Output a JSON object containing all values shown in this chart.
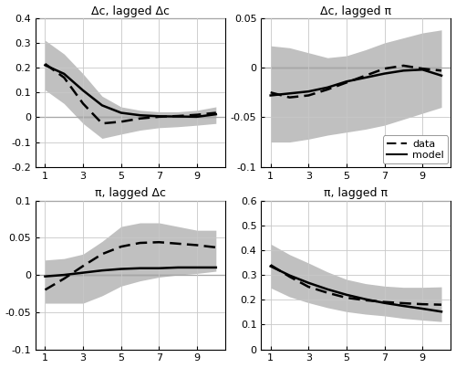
{
  "x": [
    1,
    2,
    3,
    4,
    5,
    6,
    7,
    8,
    9,
    10
  ],
  "panels": [
    {
      "title": "Δc, lagged Δc",
      "ylim": [
        -0.2,
        0.4
      ],
      "yticks": [
        -0.2,
        -0.1,
        0.0,
        0.1,
        0.2,
        0.3,
        0.4
      ],
      "ytick_labels": [
        "-0.2",
        "-0.1",
        "0",
        "0.1",
        "0.2",
        "0.3",
        "0.4"
      ],
      "model": [
        0.21,
        0.175,
        0.108,
        0.048,
        0.018,
        0.008,
        0.004,
        0.003,
        0.002,
        0.012
      ],
      "data": [
        0.215,
        0.16,
        0.055,
        -0.025,
        -0.018,
        -0.005,
        0.002,
        0.005,
        0.01,
        0.018
      ],
      "ci_upper": [
        0.31,
        0.255,
        0.175,
        0.085,
        0.042,
        0.028,
        0.022,
        0.022,
        0.028,
        0.042
      ],
      "ci_lower": [
        0.11,
        0.055,
        -0.025,
        -0.085,
        -0.068,
        -0.052,
        -0.042,
        -0.038,
        -0.032,
        -0.025
      ],
      "hline": 0.0
    },
    {
      "title": "Δc, lagged π",
      "ylim": [
        -0.1,
        0.05
      ],
      "yticks": [
        -0.1,
        -0.05,
        0.0,
        0.05
      ],
      "ytick_labels": [
        "-0.1",
        "-0.05",
        "0",
        "0.05"
      ],
      "model": [
        -0.028,
        -0.026,
        -0.024,
        -0.02,
        -0.014,
        -0.01,
        -0.006,
        -0.003,
        -0.002,
        -0.008
      ],
      "data": [
        -0.025,
        -0.03,
        -0.028,
        -0.022,
        -0.015,
        -0.008,
        -0.001,
        0.002,
        -0.001,
        -0.003
      ],
      "ci_upper": [
        0.022,
        0.02,
        0.015,
        0.01,
        0.012,
        0.018,
        0.025,
        0.03,
        0.035,
        0.038
      ],
      "ci_lower": [
        -0.075,
        -0.075,
        -0.072,
        -0.068,
        -0.065,
        -0.062,
        -0.058,
        -0.052,
        -0.046,
        -0.04
      ],
      "hline": 0.0,
      "legend": true
    },
    {
      "title": "π, lagged Δc",
      "ylim": [
        -0.1,
        0.1
      ],
      "yticks": [
        -0.1,
        -0.05,
        0.0,
        0.05,
        0.1
      ],
      "ytick_labels": [
        "-0.1",
        "-0.05",
        "0",
        "0.05",
        "0.1"
      ],
      "model": [
        -0.002,
        0.0,
        0.003,
        0.006,
        0.008,
        0.009,
        0.009,
        0.01,
        0.01,
        0.01
      ],
      "data": [
        -0.02,
        -0.005,
        0.012,
        0.028,
        0.038,
        0.043,
        0.044,
        0.042,
        0.04,
        0.037
      ],
      "ci_upper": [
        0.02,
        0.022,
        0.028,
        0.045,
        0.065,
        0.07,
        0.07,
        0.065,
        0.06,
        0.06
      ],
      "ci_lower": [
        -0.038,
        -0.038,
        -0.038,
        -0.028,
        -0.015,
        -0.008,
        -0.003,
        0.0,
        0.002,
        0.005
      ],
      "hline": 0.0
    },
    {
      "title": "π, lagged π",
      "ylim": [
        0.0,
        0.6
      ],
      "yticks": [
        0.0,
        0.1,
        0.2,
        0.3,
        0.4,
        0.5,
        0.6
      ],
      "ytick_labels": [
        "0",
        "0.1",
        "0.2",
        "0.3",
        "0.4",
        "0.5",
        "0.6"
      ],
      "model": [
        0.335,
        0.298,
        0.268,
        0.242,
        0.22,
        0.202,
        0.187,
        0.175,
        0.164,
        0.152
      ],
      "data": [
        0.34,
        0.293,
        0.252,
        0.228,
        0.208,
        0.198,
        0.191,
        0.186,
        0.182,
        0.18
      ],
      "ci_upper": [
        0.425,
        0.382,
        0.348,
        0.312,
        0.282,
        0.265,
        0.255,
        0.25,
        0.25,
        0.252
      ],
      "ci_lower": [
        0.248,
        0.212,
        0.188,
        0.168,
        0.152,
        0.142,
        0.135,
        0.125,
        0.118,
        0.112
      ],
      "hline": null
    }
  ],
  "xticks": [
    1,
    3,
    5,
    7,
    9
  ],
  "shade_color": "#c0c0c0",
  "line_color": "#000000",
  "grid_color": "#c8c8c8",
  "bg_color": "#ffffff"
}
